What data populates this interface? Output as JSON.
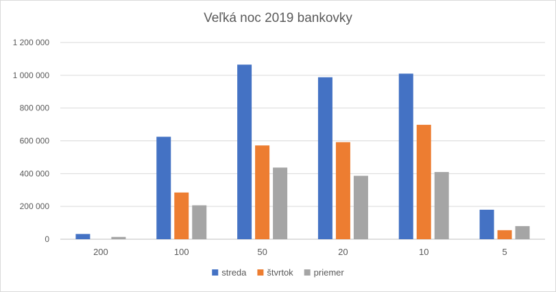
{
  "chart_data": {
    "type": "bar",
    "title": "Veľká noc 2019 bankovky",
    "categories": [
      "200",
      "100",
      "50",
      "20",
      "10",
      "5"
    ],
    "series": [
      {
        "name": "streda",
        "color": "#4472C4",
        "values": [
          32000,
          625000,
          1065000,
          988000,
          1010000,
          180000
        ]
      },
      {
        "name": "štvrtok",
        "color": "#ED7D31",
        "values": [
          0,
          285000,
          572000,
          592000,
          698000,
          55000
        ]
      },
      {
        "name": "priemer",
        "color": "#A5A5A5",
        "values": [
          14000,
          207000,
          437000,
          387000,
          410000,
          80000
        ]
      }
    ],
    "ylim": [
      0,
      1200000
    ],
    "yticks": [
      0,
      200000,
      400000,
      600000,
      800000,
      1000000,
      1200000
    ],
    "ytick_labels": [
      "0",
      "200 000",
      "400 000",
      "600 000",
      "800 000",
      "1 000 000",
      "1 200 000"
    ],
    "xlabel": "",
    "ylabel": "",
    "grid": true,
    "legend_position": "bottom"
  }
}
